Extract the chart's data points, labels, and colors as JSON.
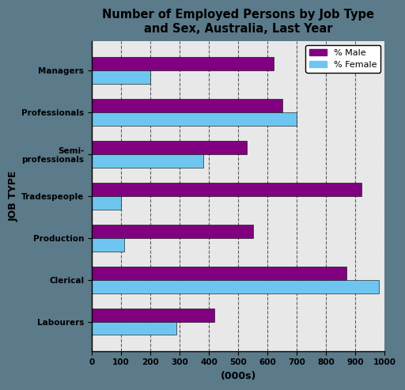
{
  "title": "Number of Employed Persons by Job Type\nand Sex, Australia, Last Year",
  "categories": [
    "Labourers",
    "Clerical",
    "Production",
    "Tradespeople",
    "Semi-\nprofessionals",
    "Professionals",
    "Managers"
  ],
  "male_values": [
    420,
    870,
    550,
    920,
    530,
    650,
    620
  ],
  "female_values": [
    290,
    980,
    110,
    100,
    380,
    700,
    200
  ],
  "male_color": "#800080",
  "female_color": "#6ec6f0",
  "xlabel": "(000s)",
  "ylabel": "JOB TYPE",
  "xlim": [
    0,
    1000
  ],
  "xticks": [
    0,
    100,
    200,
    300,
    400,
    500,
    600,
    700,
    800,
    900,
    1000
  ],
  "legend_male": "% Male",
  "legend_female": "% Female",
  "outer_bg_color": "#5b7a8a",
  "plot_bg_color": "#e8e8e8"
}
